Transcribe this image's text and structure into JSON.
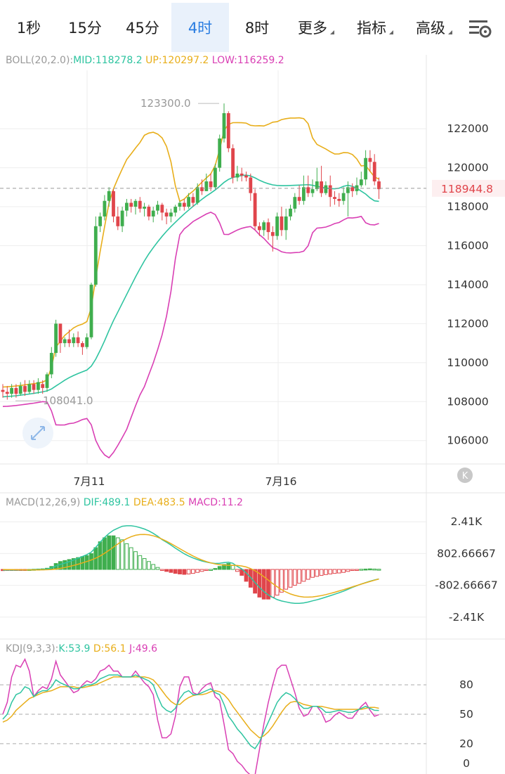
{
  "tabs": [
    {
      "label": "1秒",
      "active": false
    },
    {
      "label": "15分",
      "active": false
    },
    {
      "label": "45分",
      "active": false
    },
    {
      "label": "4时",
      "active": true
    },
    {
      "label": "8时",
      "active": false
    },
    {
      "label": "更多",
      "active": false,
      "dropdown": true
    },
    {
      "label": "指标",
      "active": false,
      "dropdown": true
    },
    {
      "label": "高级",
      "active": false,
      "dropdown": true
    }
  ],
  "settings_icon": "chart-settings-icon",
  "colors": {
    "up": "#3fae4e",
    "down": "#e0454b",
    "mid": "#2ec4a0",
    "upper": "#e8ae1a",
    "lower": "#d93fb4",
    "dif": "#2ec4a0",
    "dea": "#e8ae1a",
    "k": "#2ec4a0",
    "d": "#e8ae1a",
    "j": "#d93fb4"
  },
  "chart_data": [
    {
      "type": "candlestick",
      "indicator": "BOLL(20,2.0)",
      "legend": {
        "title": "BOLL(20,2.0):",
        "mid": "MID:118278.2",
        "upper": "UP:120297.2",
        "lower": "LOW:116259.2"
      },
      "y_ticks": [
        "122000",
        "120000",
        "118000",
        "116000",
        "114000",
        "112000",
        "110000",
        "108000",
        "106000"
      ],
      "ylim": [
        104800,
        125000
      ],
      "x_ticks": [
        {
          "label": "7月11",
          "index": 18
        },
        {
          "label": "7月16",
          "index": 61
        }
      ],
      "current_price": "118944.8",
      "high_label": "123300.0",
      "low_label": "108041.0",
      "candles": [
        [
          108600,
          108500,
          108900,
          108200
        ],
        [
          108500,
          108400,
          108800,
          108100
        ],
        [
          108400,
          108700,
          108900,
          108200
        ],
        [
          108700,
          108400,
          108900,
          108200
        ],
        [
          108400,
          108800,
          109000,
          108300
        ],
        [
          108800,
          108500,
          109100,
          108300
        ],
        [
          108500,
          108900,
          109100,
          108400
        ],
        [
          108900,
          108600,
          109100,
          108400
        ],
        [
          108600,
          109000,
          109200,
          108400
        ],
        [
          108900,
          108700,
          109100,
          108400
        ],
        [
          108700,
          109400,
          109500,
          108500
        ],
        [
          109400,
          110500,
          110800,
          109200
        ],
        [
          110500,
          112000,
          112200,
          110300
        ],
        [
          112000,
          111000,
          112000,
          110500
        ],
        [
          111000,
          111200,
          111300,
          110800
        ],
        [
          111200,
          111000,
          111700,
          110800
        ],
        [
          111000,
          111300,
          111500,
          110800
        ],
        [
          111300,
          111000,
          111600,
          110800
        ],
        [
          111000,
          110800,
          111100,
          110400
        ],
        [
          110800,
          111300,
          111500,
          110700
        ],
        [
          111300,
          114000,
          114100,
          111200
        ],
        [
          114000,
          117000,
          117500,
          113900
        ],
        [
          117000,
          117500,
          117700,
          116700
        ],
        [
          117500,
          118300,
          118600,
          117300
        ],
        [
          118300,
          118800,
          119000,
          118000
        ],
        [
          118800,
          117500,
          118900,
          117200
        ],
        [
          117500,
          117000,
          118000,
          116800
        ],
        [
          117000,
          117800,
          118000,
          116700
        ],
        [
          117800,
          118200,
          118400,
          117500
        ],
        [
          118200,
          118000,
          118400,
          117700
        ],
        [
          118000,
          118300,
          118400,
          117600
        ],
        [
          118300,
          117900,
          118500,
          117700
        ],
        [
          117900,
          118000,
          118200,
          117500
        ],
        [
          118000,
          117500,
          118100,
          117300
        ],
        [
          117500,
          117800,
          118000,
          117200
        ],
        [
          117800,
          118100,
          118300,
          117600
        ],
        [
          118100,
          117700,
          118200,
          117300
        ],
        [
          117700,
          117500,
          117900,
          117100
        ],
        [
          117500,
          117700,
          117900,
          117200
        ],
        [
          117700,
          118000,
          118100,
          117500
        ],
        [
          118000,
          118200,
          118300,
          117800
        ],
        [
          118200,
          118000,
          118400,
          117800
        ],
        [
          118000,
          118500,
          118700,
          117900
        ],
        [
          118500,
          118200,
          118700,
          118000
        ],
        [
          118200,
          119000,
          119200,
          118100
        ],
        [
          119000,
          118800,
          119400,
          118600
        ],
        [
          118800,
          119300,
          119700,
          118800
        ],
        [
          119300,
          119000,
          119700,
          118800
        ],
        [
          119000,
          120000,
          120200,
          118900
        ],
        [
          120000,
          121500,
          121700,
          119800
        ],
        [
          121500,
          122800,
          123300,
          121300
        ],
        [
          122800,
          121000,
          122900,
          120800
        ],
        [
          121000,
          119500,
          121200,
          119200
        ],
        [
          119500,
          119700,
          120100,
          119300
        ],
        [
          119700,
          119600,
          120000,
          119300
        ],
        [
          119600,
          119500,
          119800,
          119300
        ],
        [
          119500,
          118700,
          119700,
          118300
        ],
        [
          118700,
          117000,
          118900,
          116800
        ],
        [
          117000,
          116800,
          117200,
          116500
        ],
        [
          116800,
          117200,
          117300,
          116500
        ],
        [
          117200,
          116700,
          117400,
          116300
        ],
        [
          116700,
          116500,
          117000,
          115700
        ],
        [
          116500,
          117500,
          117700,
          116300
        ],
        [
          117500,
          116800,
          118000,
          116500
        ],
        [
          116800,
          117500,
          117900,
          116300
        ],
        [
          117500,
          117900,
          118100,
          117300
        ],
        [
          117900,
          118500,
          118700,
          117700
        ],
        [
          118500,
          118300,
          119100,
          118100
        ],
        [
          118300,
          119000,
          119600,
          118100
        ],
        [
          119000,
          118700,
          119600,
          118500
        ],
        [
          118700,
          118900,
          119400,
          118500
        ],
        [
          118900,
          119300,
          120000,
          118800
        ],
        [
          119300,
          118700,
          120100,
          118500
        ],
        [
          118700,
          119100,
          119300,
          118600
        ],
        [
          119100,
          118500,
          119600,
          118000
        ],
        [
          118500,
          118400,
          118800,
          118100
        ],
        [
          118400,
          118300,
          118700,
          118000
        ],
        [
          118300,
          118700,
          119000,
          118100
        ],
        [
          118700,
          119000,
          119300,
          117500
        ],
        [
          119000,
          118800,
          119200,
          118500
        ],
        [
          118800,
          119100,
          119500,
          118600
        ],
        [
          119100,
          119400,
          119800,
          119000
        ],
        [
          119400,
          120500,
          120900,
          119100
        ],
        [
          120500,
          120300,
          120900,
          119800
        ],
        [
          120300,
          119300,
          120700,
          119100
        ],
        [
          119300,
          118900,
          119500,
          118400
        ]
      ],
      "mid": [
        108250,
        108260,
        108280,
        108300,
        108330,
        108360,
        108390,
        108420,
        108460,
        108500,
        108550,
        108650,
        108800,
        108950,
        109100,
        109230,
        109340,
        109440,
        109530,
        109620,
        109820,
        110180,
        110630,
        111120,
        111650,
        112150,
        112600,
        113050,
        113500,
        113950,
        114400,
        114820,
        115220,
        115580,
        115900,
        116200,
        116480,
        116740,
        116980,
        117200,
        117420,
        117630,
        117830,
        118020,
        118200,
        118380,
        118550,
        118700,
        118860,
        119050,
        119250,
        119400,
        119500,
        119560,
        119600,
        119620,
        119580,
        119480,
        119360,
        119260,
        119180,
        119120,
        119090,
        119080,
        119080,
        119090,
        119100,
        119110,
        119120,
        119130,
        119100,
        119050,
        119000,
        118960,
        118930,
        118920,
        118950,
        119050,
        119100,
        119050,
        118950,
        118800,
        118650,
        118450,
        118300,
        118278
      ]
    },
    {
      "type": "macd",
      "indicator": "MACD(12,26,9)",
      "legend": {
        "title": "MACD(12,26,9)",
        "dif": "DIF:489.1",
        "dea": "DEA:483.5",
        "macd": "MACD:11.2"
      },
      "y_ticks": [
        "2.41K",
        "802.66667",
        "-802.66667",
        "-2.41K"
      ],
      "ylim": [
        -3200,
        3200
      ],
      "histogram": [
        -60,
        -50,
        -40,
        -30,
        -20,
        -10,
        0,
        10,
        20,
        30,
        60,
        150,
        300,
        400,
        450,
        500,
        550,
        600,
        650,
        700,
        800,
        1100,
        1400,
        1600,
        1700,
        1700,
        1600,
        1500,
        1300,
        1100,
        900,
        700,
        550,
        400,
        250,
        100,
        -50,
        -100,
        -150,
        -200,
        -230,
        -250,
        -230,
        -200,
        -150,
        -100,
        -50,
        0,
        50,
        150,
        250,
        300,
        200,
        -100,
        -300,
        -600,
        -900,
        -1200,
        -1400,
        -1500,
        -1500,
        -1400,
        -1300,
        -1150,
        -1000,
        -900,
        -800,
        -700,
        -600,
        -500,
        -400,
        -350,
        -300,
        -260,
        -230,
        -200,
        -180,
        -150,
        -100,
        -50,
        -20,
        10,
        20,
        30,
        20,
        11
      ]
    },
    {
      "type": "kdj",
      "indicator": "KDJ(9,3,3)",
      "legend": {
        "title": "KDJ(9,3,3):",
        "k": "K:53.9",
        "d": "D:56.1",
        "j": "J:49.6"
      },
      "y_ticks": [
        "80",
        "50",
        "20",
        "0"
      ],
      "ylim": [
        -8,
        108
      ]
    }
  ],
  "kdj_k": [
    45,
    50,
    62,
    70,
    72,
    78,
    76,
    68,
    72,
    74,
    74,
    78,
    85,
    82,
    80,
    78,
    76,
    76,
    78,
    80,
    80,
    82,
    86,
    88,
    90,
    90,
    90,
    88,
    88,
    88,
    90,
    88,
    86,
    84,
    80,
    68,
    58,
    54,
    52,
    56,
    66,
    72,
    74,
    70,
    70,
    72,
    74,
    76,
    72,
    70,
    60,
    48,
    42,
    35,
    30,
    24,
    18,
    15,
    22,
    32,
    42,
    52,
    62,
    68,
    72,
    70,
    66,
    60,
    56,
    56,
    58,
    58,
    56,
    52,
    52,
    53,
    54,
    53,
    52,
    52,
    54,
    56,
    58,
    56,
    54,
    53.9
  ],
  "kdj_d": [
    42,
    44,
    48,
    54,
    58,
    62,
    66,
    68,
    70,
    72,
    73,
    74,
    76,
    78,
    78,
    78,
    78,
    77,
    77,
    78,
    79,
    80,
    82,
    84,
    86,
    88,
    88,
    88,
    88,
    88,
    88,
    88,
    88,
    87,
    85,
    80,
    74,
    68,
    63,
    60,
    60,
    64,
    67,
    69,
    70,
    70,
    71,
    73,
    74,
    73,
    70,
    65,
    58,
    52,
    46,
    40,
    34,
    30,
    26,
    28,
    32,
    38,
    45,
    52,
    58,
    62,
    63,
    62,
    60,
    59,
    58,
    58,
    58,
    57,
    56,
    55,
    55,
    55,
    55,
    55,
    55,
    55,
    56,
    57,
    57,
    56.1
  ],
  "kdj_j": [
    50,
    62,
    88,
    100,
    98,
    106,
    94,
    68,
    74,
    78,
    76,
    86,
    104,
    90,
    84,
    78,
    72,
    74,
    80,
    84,
    82,
    86,
    94,
    96,
    100,
    94,
    94,
    88,
    88,
    88,
    94,
    88,
    82,
    78,
    70,
    44,
    26,
    26,
    30,
    48,
    78,
    88,
    88,
    72,
    70,
    76,
    80,
    82,
    68,
    64,
    40,
    14,
    10,
    2,
    -2,
    -8,
    -12,
    -12,
    14,
    40,
    62,
    80,
    96,
    100,
    100,
    86,
    72,
    56,
    48,
    50,
    58,
    58,
    52,
    42,
    44,
    49,
    52,
    49,
    46,
    46,
    52,
    58,
    62,
    54,
    48,
    49.6
  ]
}
